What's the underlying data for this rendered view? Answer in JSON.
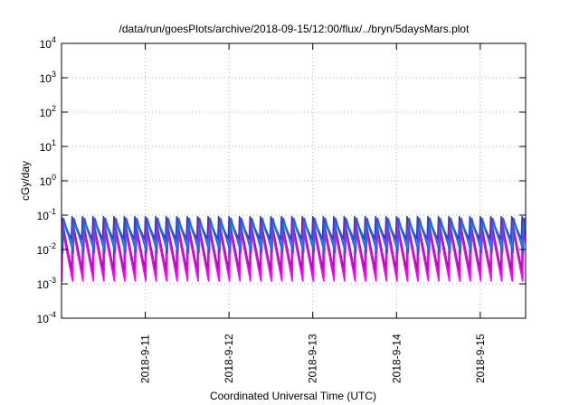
{
  "chart_data": {
    "type": "line",
    "title": "/data/run/goesPlots/archive/2018-09-15/12:00/flux/../bryn/5daysMars.plot",
    "xlabel": "Coordinated Universal Time (UTC)",
    "ylabel": "cGy/day",
    "x_range": [
      "2018-09-10 00:00",
      "2018-09-15 13:00"
    ],
    "x_ticks": [
      "2018-9-11",
      "2018-9-12",
      "2018-9-13",
      "2018-9-14",
      "2018-9-15"
    ],
    "y_scale": "log",
    "ylim": [
      0.0001,
      10000
    ],
    "y_ticks": [
      {
        "base": "10",
        "exp": "4"
      },
      {
        "base": "10",
        "exp": "3"
      },
      {
        "base": "10",
        "exp": "2"
      },
      {
        "base": "10",
        "exp": "1"
      },
      {
        "base": "10",
        "exp": "0"
      },
      {
        "base": "10",
        "exp": "-1"
      },
      {
        "base": "10",
        "exp": "-2"
      },
      {
        "base": "10",
        "exp": "-3"
      },
      {
        "base": "10",
        "exp": "-4"
      }
    ],
    "grid": true,
    "cycle_period_hours": 3,
    "series": [
      {
        "color": "#1f3fdf",
        "peak": 0.09,
        "trough": 0.02
      },
      {
        "color": "#7a2a8a",
        "peak": 0.075,
        "trough": 0.0025
      },
      {
        "color": "#c000c0",
        "peak": 0.05,
        "trough": 0.0015
      },
      {
        "color": "#ff00ff",
        "peak": 0.035,
        "trough": 0.0012
      },
      {
        "color": "#00b0b0",
        "peak": 0.06,
        "trough": 0.012
      },
      {
        "color": "#3355ff",
        "peak": 0.08,
        "trough": 0.008
      }
    ]
  }
}
